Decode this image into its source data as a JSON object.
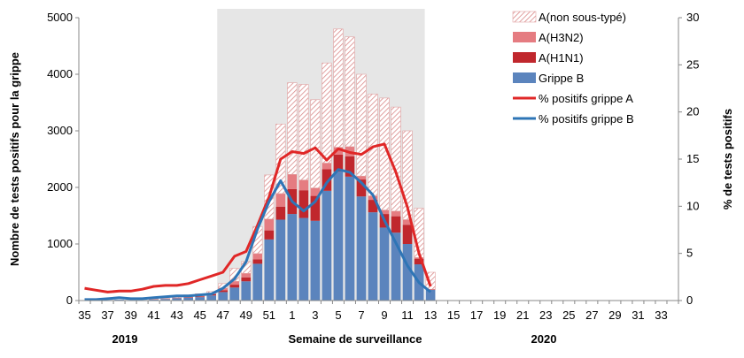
{
  "chart_data": {
    "type": "bar+line",
    "title": "",
    "xlabel": "Semaine de surveillance",
    "ylabel": "Nombre de tests positifs pour la grippe",
    "y2label": "% de tests positifs",
    "year_labels": [
      "2019",
      "2020"
    ],
    "ylim": [
      0,
      5000
    ],
    "y_ticks": [
      "0",
      "1000",
      "2000",
      "3000",
      "4000",
      "5000"
    ],
    "y2lim": [
      0,
      30
    ],
    "y2_ticks": [
      "0",
      "5",
      "10",
      "15",
      "20",
      "25",
      "30"
    ],
    "shaded_period": {
      "from_week": "47",
      "to_week": "12",
      "color": "#e6e6e6"
    },
    "weeks": [
      35,
      36,
      37,
      38,
      39,
      40,
      41,
      42,
      43,
      44,
      45,
      46,
      47,
      48,
      49,
      50,
      51,
      52,
      1,
      2,
      3,
      4,
      5,
      6,
      7,
      8,
      9,
      10,
      11,
      12,
      13,
      14,
      15,
      16,
      17,
      18,
      19,
      20,
      21,
      22,
      23,
      24,
      25,
      26,
      27,
      28,
      29,
      30,
      31,
      32,
      33,
      34
    ],
    "week_tick_labels": [
      "35",
      "37",
      "39",
      "41",
      "43",
      "45",
      "47",
      "49",
      "51",
      "1",
      "3",
      "5",
      "7",
      "9",
      "11",
      "13",
      "15",
      "17",
      "19",
      "21",
      "23",
      "25",
      "27",
      "29",
      "31",
      "33"
    ],
    "series": [
      {
        "name": "Grippe B",
        "kind": "bar",
        "color": "#5b84bd",
        "values": [
          5,
          5,
          10,
          15,
          10,
          10,
          20,
          30,
          40,
          50,
          60,
          90,
          150,
          230,
          340,
          650,
          1080,
          1430,
          1530,
          1460,
          1410,
          1940,
          2280,
          2190,
          1840,
          1560,
          1290,
          1200,
          1000,
          640,
          190,
          0,
          0,
          0,
          0,
          0,
          0,
          0,
          0,
          0,
          0,
          0,
          0,
          0,
          0,
          0,
          0,
          0,
          0,
          0,
          0,
          0
        ]
      },
      {
        "name": "A(H1N1)",
        "kind": "bar",
        "color": "#c0272d",
        "values": [
          0,
          0,
          0,
          0,
          0,
          0,
          0,
          0,
          5,
          10,
          10,
          20,
          30,
          50,
          70,
          80,
          160,
          230,
          440,
          490,
          440,
          380,
          300,
          360,
          300,
          220,
          240,
          290,
          340,
          100,
          10,
          0,
          0,
          0,
          0,
          0,
          0,
          0,
          0,
          0,
          0,
          0,
          0,
          0,
          0,
          0,
          0,
          0,
          0,
          0,
          0,
          0
        ]
      },
      {
        "name": "A(H3N2)",
        "kind": "bar",
        "color": "#e57c81",
        "values": [
          0,
          0,
          0,
          0,
          0,
          0,
          0,
          0,
          5,
          10,
          10,
          20,
          40,
          60,
          70,
          100,
          200,
          230,
          260,
          180,
          140,
          110,
          130,
          170,
          60,
          70,
          70,
          90,
          90,
          20,
          0,
          0,
          0,
          0,
          0,
          0,
          0,
          0,
          0,
          0,
          0,
          0,
          0,
          0,
          0,
          0,
          0,
          0,
          0,
          0,
          0,
          0
        ]
      },
      {
        "name": "A(non sous-typé)",
        "kind": "bar",
        "color": "#e8a9a9",
        "values": [
          0,
          0,
          0,
          0,
          0,
          0,
          10,
          10,
          20,
          30,
          40,
          30,
          80,
          230,
          210,
          480,
          780,
          1230,
          1620,
          1690,
          1560,
          1770,
          2090,
          1940,
          1800,
          1800,
          1980,
          1840,
          1570,
          870,
          300,
          0,
          0,
          0,
          0,
          0,
          0,
          0,
          0,
          0,
          0,
          0,
          0,
          0,
          0,
          0,
          0,
          0,
          0,
          0,
          0,
          0
        ]
      },
      {
        "name": "% positifs grippe A",
        "kind": "line",
        "axis": "right",
        "color": "#e02727",
        "values": [
          1.3,
          1.1,
          0.9,
          1.0,
          1.0,
          1.2,
          1.5,
          1.6,
          1.6,
          1.8,
          2.2,
          2.6,
          3.0,
          4.7,
          5.2,
          8.0,
          11.0,
          15.0,
          15.8,
          15.6,
          16.2,
          14.9,
          16.1,
          15.7,
          15.5,
          16.3,
          16.6,
          13.6,
          9.9,
          5.0,
          1.5
        ]
      },
      {
        "name": "% positifs grippe B",
        "kind": "line",
        "axis": "right",
        "color": "#2e75b6",
        "values": [
          0.1,
          0.1,
          0.2,
          0.3,
          0.2,
          0.2,
          0.3,
          0.4,
          0.5,
          0.5,
          0.6,
          0.7,
          1.3,
          2.3,
          4.1,
          7.6,
          10.5,
          12.7,
          10.5,
          9.5,
          10.5,
          12.5,
          13.9,
          13.6,
          12.5,
          11.2,
          8.5,
          6.1,
          3.7,
          1.9,
          0.9
        ]
      }
    ],
    "legend": {
      "placement": "top-right",
      "order": [
        "A(non sous-typé)",
        "A(H3N2)",
        "A(H1N1)",
        "Grippe B",
        "% positifs grippe A",
        "% positifs grippe B"
      ]
    }
  }
}
